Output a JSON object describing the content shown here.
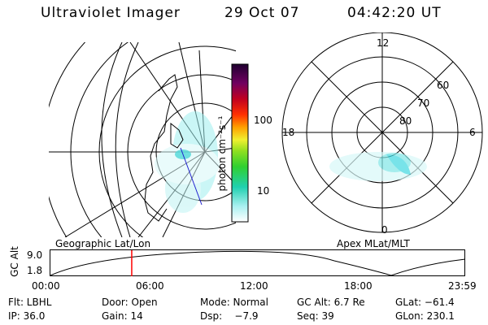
{
  "header": {
    "instrument": "Ultraviolet Imager",
    "date": "29 Oct 07",
    "time": "04:42:20 UT"
  },
  "colorbar": {
    "label": "photon cm⁻²s⁻¹",
    "ticks": [
      "100",
      "10"
    ]
  },
  "polar_plot": {
    "mlt_labels": {
      "top": "12",
      "left": "18",
      "right": "6",
      "bottom": "0"
    },
    "lat_labels": [
      "60",
      "70",
      "80"
    ]
  },
  "panel_labels": {
    "left": "Geographic Lat/Lon",
    "right": "Apex MLat/MLT"
  },
  "altitude_plot": {
    "ylabel": "GC Alt",
    "y_ticks": [
      "9.0",
      "1.8"
    ],
    "x_ticks": [
      "00:00",
      "06:00",
      "12:00",
      "18:00",
      "23:59"
    ],
    "marker_time_fraction": 0.196
  },
  "info": {
    "row1": {
      "flt": "Flt: LBHL",
      "door": "Door: Open",
      "mode": "Mode: Normal",
      "gcalt": "GC Alt: 6.7 Re",
      "glat": "GLat: −61.4"
    },
    "row2": {
      "ip": "IP: 36.0",
      "gain": "Gain: 14",
      "dsp": "Dsp:    −7.9",
      "seq": "Seq: 39",
      "glon": "GLon: 230.1"
    }
  },
  "colors": {
    "glow": "#7fe6e6",
    "marker": "#ff0000"
  }
}
